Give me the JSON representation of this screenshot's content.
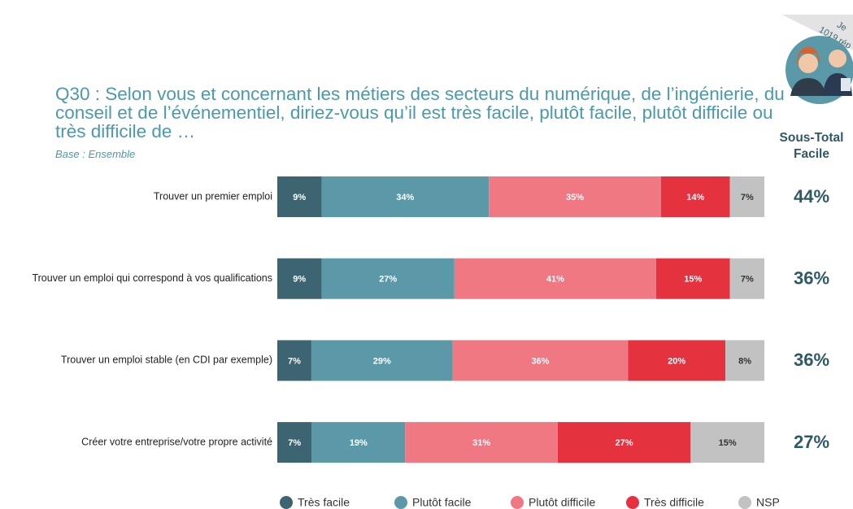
{
  "chart_data": {
    "type": "stacked-bar-horizontal",
    "title": "Q30 : Selon vous et concernant les métiers des secteurs du numérique, de l’ingénierie, du conseil et de l’événementiel, diriez-vous qu’il est très facile, plutôt facile, plutôt difficile ou très difficile de …",
    "subtitle": "Base : Ensemble",
    "badge": [
      "Je",
      "1019 rép"
    ],
    "categories": [
      "Trouver un premier emploi",
      "Trouver un emploi qui correspond à vos qualifications",
      "Trouver un emploi stable (en CDI par exemple)",
      "Créer votre entreprise/votre propre activité"
    ],
    "series": [
      {
        "name": "Très facile",
        "color": "#3d6471",
        "values": [
          9,
          9,
          7,
          7
        ],
        "value_labels": [
          "9%",
          "9%",
          "7%",
          "7%"
        ]
      },
      {
        "name": "Plutôt facile",
        "color": "#5b99a8",
        "values": [
          34,
          27,
          29,
          19
        ],
        "value_labels": [
          "34%",
          "27%",
          "29%",
          "19%"
        ]
      },
      {
        "name": "Plutôt difficile",
        "color": "#ef7883",
        "values": [
          35,
          41,
          36,
          31
        ],
        "value_labels": [
          "35%",
          "41%",
          "36%",
          "31%"
        ]
      },
      {
        "name": "Très difficile",
        "color": "#e5323f",
        "values": [
          14,
          15,
          20,
          27
        ],
        "value_labels": [
          "14%",
          "15%",
          "20%",
          "27%"
        ]
      },
      {
        "name": "NSP",
        "color": "#c2c2c2",
        "values": [
          7,
          7,
          8,
          15
        ],
        "value_labels": [
          "7%",
          "7%",
          "8%",
          "15%"
        ]
      }
    ],
    "subtotal": {
      "title": "Sous-Total Facile",
      "values": [
        44,
        36,
        36,
        27
      ],
      "value_labels": [
        "44%",
        "36%",
        "36%",
        "27%"
      ]
    }
  }
}
